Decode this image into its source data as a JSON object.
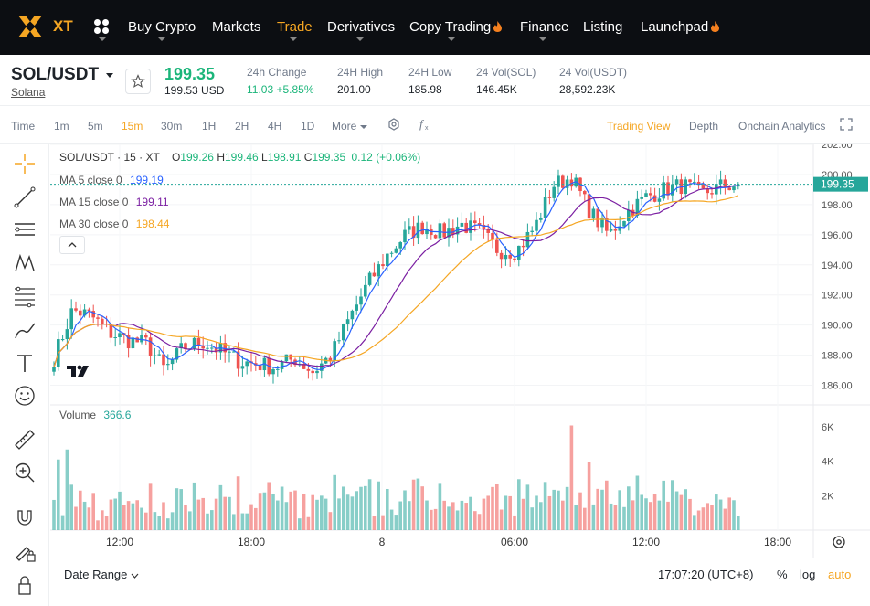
{
  "nav": {
    "logo_text": "XT",
    "items": [
      {
        "label": "Buy Crypto",
        "fire": false
      },
      {
        "label": "Markets",
        "fire": false
      },
      {
        "label": "Trade",
        "fire": false,
        "active": true
      },
      {
        "label": "Derivatives",
        "fire": false
      },
      {
        "label": "Copy Trading",
        "fire": true
      },
      {
        "label": "Finance",
        "fire": false
      },
      {
        "label": "Listing",
        "fire": false
      },
      {
        "label": "Launchpad",
        "fire": true
      }
    ]
  },
  "ticker": {
    "pair": "SOL/USDT",
    "name": "Solana",
    "last_price": "199.35",
    "last_usd": "199.53 USD",
    "stats": [
      {
        "label": "24h Change",
        "value": "11.03 +5.85%",
        "positive": true
      },
      {
        "label": "24H High",
        "value": "201.00"
      },
      {
        "label": "24H Low",
        "value": "185.98"
      },
      {
        "label": "24 Vol(SOL)",
        "value": "146.45K"
      },
      {
        "label": "24 Vol(USDT)",
        "value": "28,592.23K"
      }
    ]
  },
  "toolbar": {
    "intervals": [
      "Time",
      "1m",
      "5m",
      "15m",
      "30m",
      "1H",
      "2H",
      "4H",
      "1D"
    ],
    "active_interval": "15m",
    "more_label": "More",
    "views": [
      "Trading View",
      "Depth",
      "Onchain Analytics"
    ],
    "active_view": "Trading View"
  },
  "legend": {
    "symbol": "SOL/USDT · 15 · XT",
    "o": "199.26",
    "h": "199.46",
    "l": "198.91",
    "c": "199.35",
    "change": "0.12 (+0.06%)",
    "ma5_label": "MA 5 close 0",
    "ma5": "199.19",
    "ma15_label": "MA 15 close 0",
    "ma15": "199.11",
    "ma30_label": "MA 30 close 0",
    "ma30": "198.44",
    "volume_label": "Volume",
    "volume": "366.6"
  },
  "colors": {
    "up": "#26a69a",
    "down": "#ef5350",
    "ma5": "#2962ff",
    "ma15": "#7b1fa2",
    "ma30": "#f5a623",
    "accent": "#f5a623"
  },
  "chart_data": {
    "type": "candlestick",
    "price_axis_ticks": [
      "202.00",
      "200.00",
      "198.00",
      "196.00",
      "194.00",
      "192.00",
      "190.00",
      "188.00",
      "186.00"
    ],
    "price_range": [
      185.0,
      202.0
    ],
    "last_price_label": "199.35",
    "volume_axis_ticks": [
      "6K",
      "4K",
      "2K"
    ],
    "time_axis_ticks": [
      "12:00",
      "18:00",
      "8",
      "06:00",
      "12:00",
      "18:00"
    ],
    "approx_close_path": [
      187.8,
      191.0,
      190.6,
      189.5,
      189.0,
      188.8,
      187.0,
      188.5,
      188.9,
      188.3,
      187.6,
      187.4,
      187.2,
      187.8,
      186.9,
      188.0,
      190.5,
      192.8,
      194.6,
      196.0,
      196.6,
      196.1,
      196.7,
      196.2,
      195.0,
      194.9,
      196.5,
      199.3,
      199.8,
      197.5,
      196.0,
      197.5,
      198.5,
      199.0,
      199.3,
      198.7,
      199.2,
      199.35
    ]
  },
  "bottom": {
    "date_range": "Date Range",
    "time": "17:07:20 (UTC+8)",
    "pct": "%",
    "log": "log",
    "auto": "auto"
  }
}
